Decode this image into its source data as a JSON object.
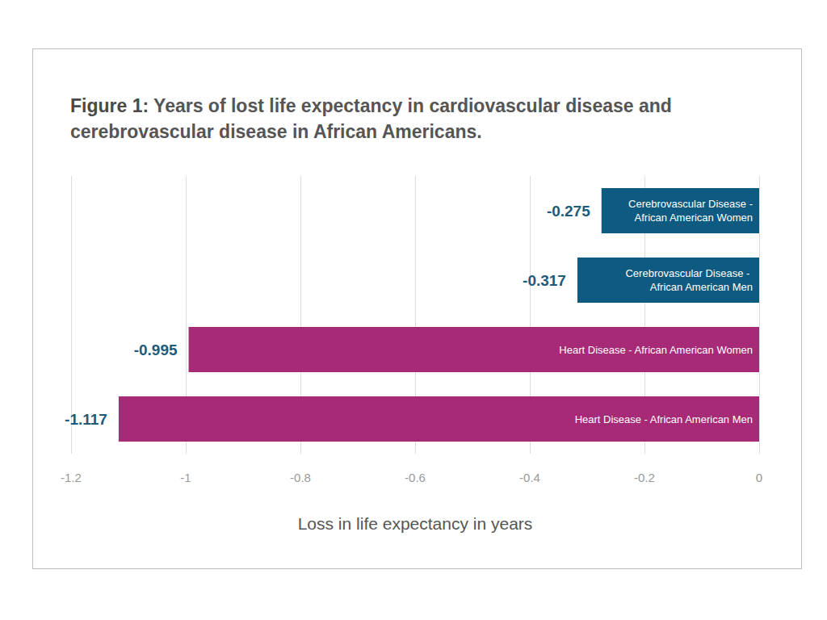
{
  "chart_data": {
    "type": "bar",
    "orientation": "horizontal",
    "title": "Figure 1: Years of lost life expectancy in cardiovascular disease and cerebrovascular disease in African Americans.",
    "xlabel": "Loss in life expectancy in years",
    "categories": [
      "Cerebrovascular Disease - African American Women",
      "Cerebrovascular Disease - African American Men",
      "Heart Disease - African American Women",
      "Heart Disease - African American Men"
    ],
    "values": [
      -0.275,
      -0.317,
      -0.995,
      -1.117
    ],
    "colors": [
      "#0f5a80",
      "#0f5a80",
      "#a72a77",
      "#a72a77"
    ],
    "xlim": [
      -1.2,
      0
    ],
    "xticks": [
      -1.2,
      -1,
      -0.8,
      -0.6,
      -0.4,
      -0.2,
      0
    ],
    "grid": true,
    "data_labels": true,
    "tick_labels": "x"
  }
}
